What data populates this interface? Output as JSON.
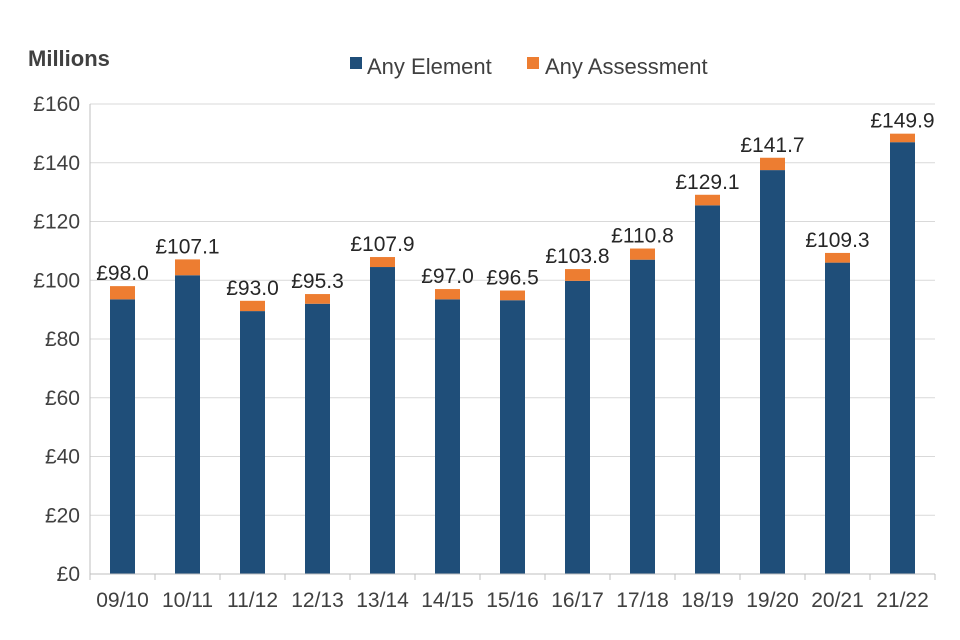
{
  "chart_data": {
    "type": "bar",
    "stacked": true,
    "ylabel": "Millions",
    "ylim": [
      0,
      160
    ],
    "y_ticks": [
      "£0",
      "£20",
      "£40",
      "£60",
      "£80",
      "£100",
      "£120",
      "£140",
      "£160"
    ],
    "y_tick_values": [
      0,
      20,
      40,
      60,
      80,
      100,
      120,
      140,
      160
    ],
    "grid": true,
    "legend_position": "top",
    "categories": [
      "09/10",
      "10/11",
      "11/12",
      "12/13",
      "13/14",
      "14/15",
      "15/16",
      "16/17",
      "17/18",
      "18/19",
      "19/20",
      "20/21",
      "21/22"
    ],
    "series": [
      {
        "name": "Any Element",
        "color": "#1f4e79",
        "values": [
          93.5,
          101.7,
          89.5,
          92.0,
          104.5,
          93.5,
          93.2,
          99.8,
          107.0,
          125.5,
          137.5,
          106.0,
          147.0
        ]
      },
      {
        "name": "Any Assessment",
        "color": "#ed7d31",
        "values": [
          4.5,
          5.4,
          3.5,
          3.3,
          3.4,
          3.5,
          3.3,
          4.0,
          3.8,
          3.6,
          4.2,
          3.3,
          2.9
        ]
      }
    ],
    "totals": [
      98.0,
      107.1,
      93.0,
      95.3,
      107.9,
      97.0,
      96.5,
      103.8,
      110.8,
      129.1,
      141.7,
      109.3,
      149.9
    ],
    "total_labels": [
      "£98.0",
      "£107.1",
      "£93.0",
      "£95.3",
      "£107.9",
      "£97.0",
      "£96.5",
      "£103.8",
      "£110.8",
      "£129.1",
      "£141.7",
      "£109.3",
      "£149.9"
    ]
  }
}
